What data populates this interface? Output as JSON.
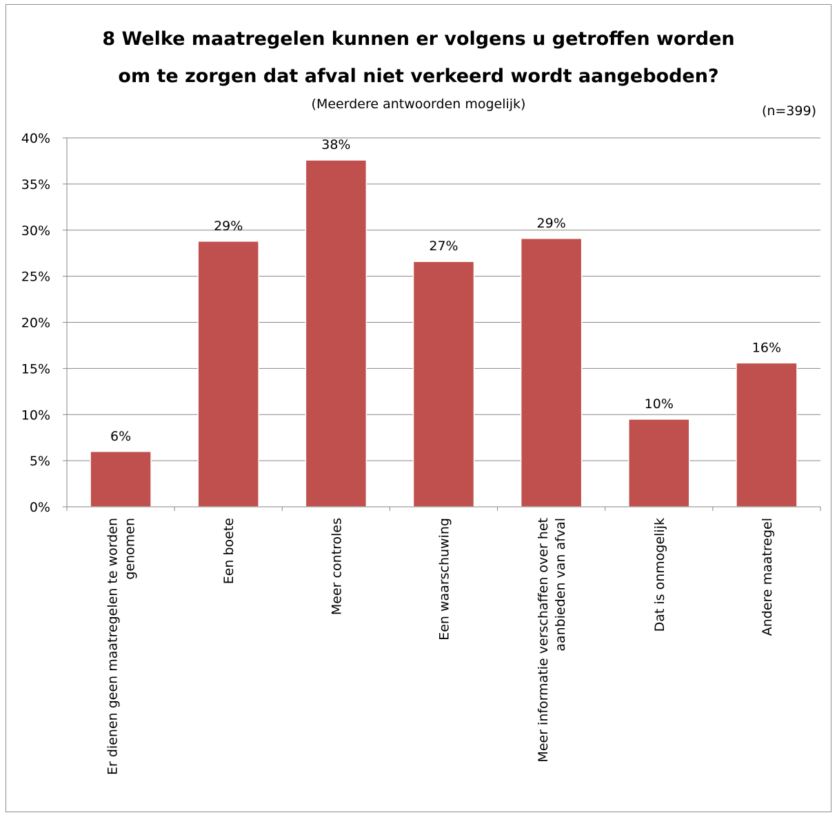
{
  "chart_data": {
    "type": "bar",
    "title_lines": [
      "8 Welke maatregelen kunnen er volgens u getroffen worden",
      "om te zorgen dat afval niet verkeerd wordt aangeboden?"
    ],
    "subtitle": "(Meerdere antwoorden mogelijk)",
    "note": "(n=399)",
    "categories": [
      [
        "Er dienen geen maatregelen te worden",
        "genomen"
      ],
      [
        "Een boete"
      ],
      [
        "Meer controles"
      ],
      [
        "Een waarschuwing"
      ],
      [
        "Meer informatie verschaffen over het",
        "aanbieden van afval"
      ],
      [
        "Dat is onmogelijk"
      ],
      [
        "Andere maatregel"
      ]
    ],
    "values": [
      6,
      28.8,
      37.6,
      26.6,
      29.1,
      9.5,
      15.6
    ],
    "data_labels": [
      "6%",
      "29%",
      "38%",
      "27%",
      "29%",
      "10%",
      "16%"
    ],
    "ylim": [
      0,
      40
    ],
    "yticks": [
      0,
      5,
      10,
      15,
      20,
      25,
      30,
      35,
      40
    ],
    "ytick_labels": [
      "0%",
      "5%",
      "10%",
      "15%",
      "20%",
      "25%",
      "30%",
      "35%",
      "40%"
    ],
    "grid": true,
    "bar_color": "#c0504d"
  }
}
